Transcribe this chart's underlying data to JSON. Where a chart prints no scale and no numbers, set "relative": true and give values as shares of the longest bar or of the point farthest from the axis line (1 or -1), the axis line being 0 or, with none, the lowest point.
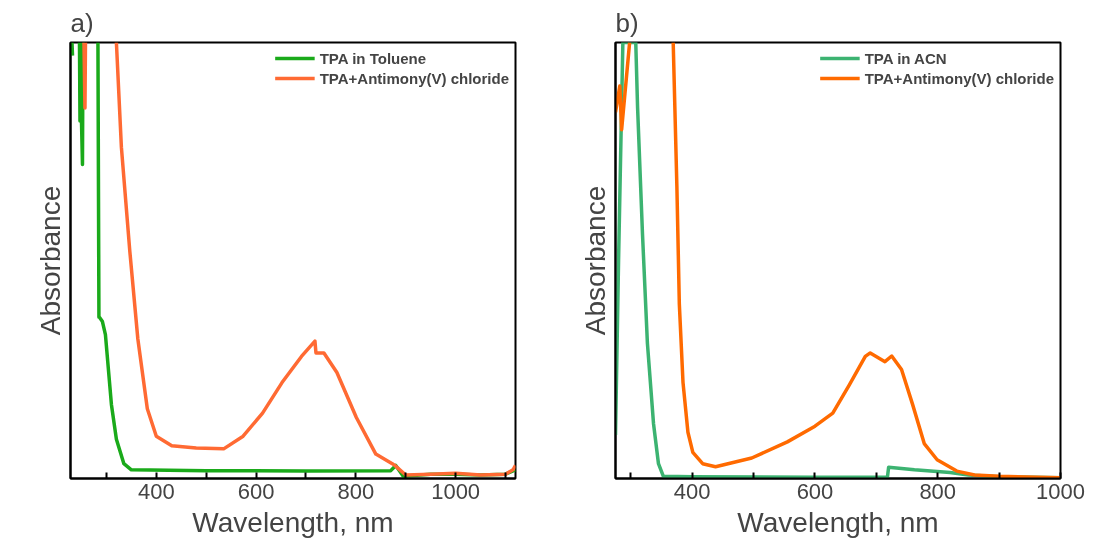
{
  "chart_data": [
    {
      "type": "line",
      "title": "a)",
      "xlabel": "Wavelength, nm",
      "ylabel": "Absorbance",
      "relative": true,
      "legend": "top right",
      "xlim": [
        228,
        1120
      ],
      "xticks": [
        {
          "value": 300,
          "label": null
        },
        400,
        {
          "value": 500,
          "label": null
        },
        600,
        {
          "value": 700,
          "label": null
        },
        800,
        {
          "value": 900,
          "label": null
        },
        1000,
        {
          "value": 1100,
          "label": null
        }
      ],
      "series": [
        {
          "name": "TPA in Toluene",
          "color": "#1aaa1a",
          "x": [
            231,
            232,
            239,
            246,
            247,
            250,
            252,
            253,
            268,
            283,
            285,
            286,
            292,
            298,
            310,
            320,
            335,
            350,
            500,
            700,
            870,
            880,
            895,
            950,
            1000,
            1050,
            1100,
            1120
          ],
          "values": [
            1.0,
            0.97,
            null,
            1.0,
            0.82,
            0.82,
            0.72,
            1.0,
            null,
            1.0,
            0.37,
            0.37,
            0.36,
            0.33,
            0.17,
            0.09,
            0.034,
            0.02,
            0.018,
            0.017,
            0.018,
            0.03,
            0.005,
            0.01,
            0.01,
            0.008,
            0.01,
            0.02
          ]
        },
        {
          "name": "TPA+Antimony(V) chloride",
          "color": "#ff6a33",
          "x": [
            255,
            257,
            258,
            290,
            320,
            330,
            347,
            363,
            382,
            400,
            431,
            480,
            535,
            574,
            613,
            652,
            691,
            718,
            720,
            736,
            762,
            801,
            840,
            873,
            878,
            900,
            950,
            1000,
            1050,
            1100,
            1115,
            1120
          ],
          "values": [
            1.0,
            0.85,
            1.0,
            null,
            1.0,
            0.76,
            0.52,
            0.32,
            0.16,
            0.097,
            0.075,
            0.07,
            0.068,
            0.097,
            0.15,
            0.22,
            0.28,
            0.315,
            0.288,
            0.288,
            0.243,
            0.14,
            0.056,
            0.034,
            0.03,
            0.008,
            0.01,
            0.012,
            0.008,
            0.01,
            0.02,
            0.03
          ]
        }
      ]
    },
    {
      "type": "line",
      "title": "b)",
      "xlabel": "Wavelength, nm",
      "ylabel": "Absorbance",
      "relative": true,
      "legend": "top right",
      "xlim": [
        275,
        1000
      ],
      "xticks": [
        {
          "value": 300,
          "label": null
        },
        400,
        {
          "value": 500,
          "label": null
        },
        600,
        {
          "value": 700,
          "label": null
        },
        800,
        {
          "value": 900,
          "label": null
        },
        1000
      ],
      "series": [
        {
          "name": "TPA in ACN",
          "color": "#3cb371",
          "x": [
            275,
            280,
            287,
            308,
            311,
            319,
            327,
            337,
            345,
            353,
            400,
            600,
            718,
            720,
            762,
            820,
            850,
            900,
            1000
          ],
          "values": [
            0.1,
            0.5,
            1.0,
            1.0,
            0.85,
            0.56,
            0.31,
            0.125,
            0.034,
            0.005,
            0.004,
            0.003,
            0.003,
            0.026,
            0.02,
            0.014,
            0.008,
            0.004,
            0.002
          ]
        },
        {
          "name": "TPA+Antimony(V) chloride",
          "color": "#ff6a00",
          "x": [
            275,
            282,
            285,
            298,
            330,
            369,
            375,
            379,
            385,
            393,
            401,
            417,
            438,
            497,
            555,
            600,
            629,
            656,
            682,
            690,
            714,
            725,
            741,
            759,
            778,
            799,
            831,
            860,
            900,
            1000
          ],
          "values": [
            0.84,
            0.9,
            0.8,
            1.0,
            null,
            1.0,
            0.67,
            0.4,
            0.22,
            0.106,
            0.06,
            0.034,
            0.027,
            0.047,
            0.084,
            0.12,
            0.15,
            0.215,
            0.28,
            0.288,
            0.268,
            0.281,
            0.25,
            0.17,
            0.08,
            0.043,
            0.017,
            0.008,
            0.005,
            0.002
          ]
        }
      ]
    }
  ]
}
